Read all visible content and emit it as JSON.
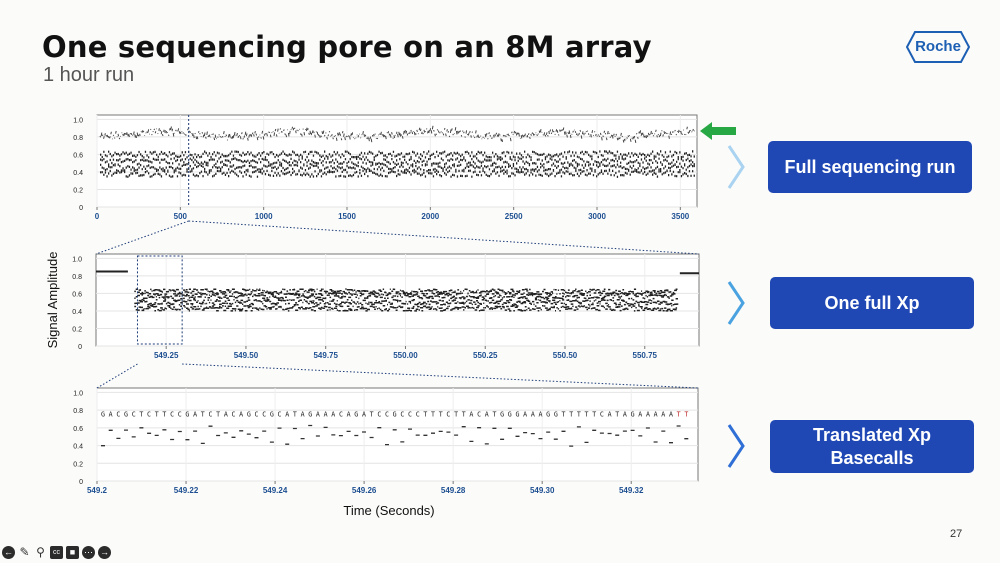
{
  "slide": {
    "title": "One sequencing pore on an 8M array",
    "subtitle": "1 hour run",
    "logo_text": "Roche",
    "page_number": "27"
  },
  "callouts": [
    {
      "label": "Full sequencing run"
    },
    {
      "label": "One full Xp"
    },
    {
      "label": "Translated Xp Basecalls"
    }
  ],
  "colors": {
    "callout_bg": "#1f48b5",
    "arrow_green": "#27a844",
    "chevron_light": "#a9d3f0",
    "chevron_mid": "#4aa3e0",
    "chevron_dark": "#2f6fd6",
    "axis_tick_blue": "#1d4f91",
    "trace_grey": "#444444"
  },
  "icons": [
    "arrow-left-circle-icon",
    "pen-icon",
    "magnifier-icon",
    "cc-icon",
    "video-icon",
    "more-icon",
    "arrow-right-circle-icon"
  ],
  "chart_data": [
    {
      "type": "line",
      "title": "",
      "xlabel": "",
      "ylabel": "",
      "x_ticks": [
        0,
        500,
        1000,
        1500,
        2000,
        2500,
        3000,
        3500
      ],
      "y_ticks": [
        "0",
        "0.2",
        "0.4",
        "0.6",
        "0.8",
        "1.0"
      ],
      "xlim": [
        0,
        3600
      ],
      "ylim": [
        0,
        1.05
      ],
      "grid": true,
      "series": [
        {
          "values_description": "",
          "levels": [
            0.85,
            0.6,
            0.52,
            0.45,
            0.38
          ]
        }
      ],
      "marker_x": 550
    },
    {
      "type": "scatter",
      "xlabel": "",
      "ylabel": "Signal Amplitude",
      "x_ticks": [
        "549.25",
        "549.50",
        "549.75",
        "550.00",
        "550.25",
        "550.50",
        "550.75"
      ],
      "x_tick_values": [
        549.25,
        549.5,
        549.75,
        550.0,
        550.25,
        550.5,
        550.75
      ],
      "y_ticks": [
        "0",
        "0.2",
        "0.4",
        "0.6",
        "0.8",
        "1.0"
      ],
      "xlim": [
        549.03,
        550.92
      ],
      "ylim": [
        0,
        1.05
      ],
      "grid": true,
      "open_level_segments": [
        [
          549.03,
          549.13,
          0.85
        ],
        [
          550.86,
          550.92,
          0.83
        ]
      ],
      "event_range": [
        549.15,
        550.85
      ],
      "event_levels": [
        0.62,
        0.57,
        0.5,
        0.43
      ],
      "zoom_box": [
        549.16,
        549.3
      ]
    },
    {
      "type": "scatter",
      "xlabel": "Time (Seconds)",
      "ylabel": "",
      "x_ticks": [
        "549.2",
        "549.22",
        "549.24",
        "549.26",
        "549.28",
        "549.30",
        "549.32"
      ],
      "x_tick_values": [
        549.2,
        549.22,
        549.24,
        549.26,
        549.28,
        549.3,
        549.32
      ],
      "y_ticks": [
        "0",
        "0.2",
        "0.4",
        "0.6",
        "0.8",
        "1.0"
      ],
      "xlim": [
        549.2,
        549.335
      ],
      "ylim": [
        0,
        1.05
      ],
      "grid": true,
      "basecalls": "GACGCTCTTCCGATCTACAGCCGCATAGAAACAGATCCGCCCTTTCTTACATGGGAAAGGTTTTTCATAGAAAAATT"
    }
  ]
}
